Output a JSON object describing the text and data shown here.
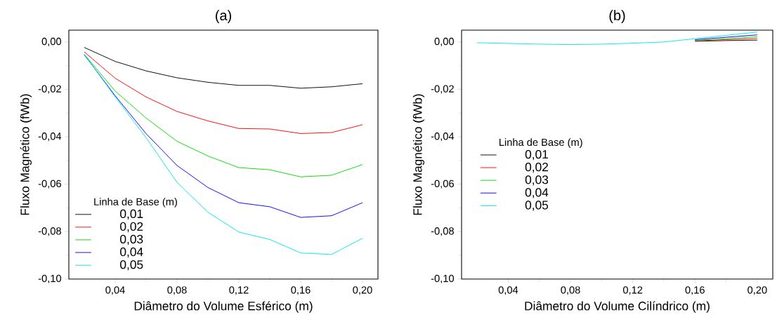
{
  "chart_data": [
    {
      "type": "line",
      "title": "(a)",
      "xlabel": "Diâmetro do Volume Esférico (m)",
      "ylabel": "Fluxo Magnético (fWb)",
      "legend_title": "Linha de Base (m)",
      "legend": "bottom left",
      "grid": false,
      "x": [
        0.02,
        0.04,
        0.06,
        0.08,
        0.1,
        0.12,
        0.14,
        0.16,
        0.18,
        0.2
      ],
      "xlim": [
        0.01,
        0.21
      ],
      "ylim": [
        -0.1,
        0.005
      ],
      "xticks": [
        {
          "value": 0.04,
          "label": "0,04"
        },
        {
          "value": 0.08,
          "label": "0,08"
        },
        {
          "value": 0.12,
          "label": "0,12"
        },
        {
          "value": 0.16,
          "label": "0,16"
        },
        {
          "value": 0.2,
          "label": "0,20"
        }
      ],
      "yticks": [
        {
          "value": -0.1,
          "label": "-0,10"
        },
        {
          "value": -0.08,
          "label": "-0,08"
        },
        {
          "value": -0.06,
          "label": "-0,06"
        },
        {
          "value": -0.04,
          "label": "-0,04"
        },
        {
          "value": -0.02,
          "label": "-0,02"
        },
        {
          "value": 0,
          "label": "0,00"
        }
      ],
      "series": [
        {
          "name": "0,01",
          "color": "#000000",
          "values": [
            -0.0023,
            -0.0082,
            -0.0122,
            -0.0151,
            -0.017,
            -0.0183,
            -0.0183,
            -0.0195,
            -0.0189,
            -0.0176
          ]
        },
        {
          "name": "0,02",
          "color": "#ff0000",
          "values": [
            -0.0042,
            -0.0153,
            -0.0232,
            -0.0293,
            -0.0333,
            -0.0365,
            -0.0367,
            -0.0386,
            -0.0382,
            -0.0349
          ]
        },
        {
          "name": "0,03",
          "color": "#00dd00",
          "values": [
            -0.0052,
            -0.0207,
            -0.0321,
            -0.0419,
            -0.0481,
            -0.053,
            -0.0539,
            -0.0569,
            -0.0562,
            -0.0517
          ]
        },
        {
          "name": "0,04",
          "color": "#0000ff",
          "values": [
            -0.0054,
            -0.0227,
            -0.0387,
            -0.0521,
            -0.0614,
            -0.0678,
            -0.0695,
            -0.074,
            -0.0733,
            -0.0678
          ]
        },
        {
          "name": "0,05",
          "color": "#00e5ee",
          "values": [
            -0.0052,
            -0.0232,
            -0.0404,
            -0.0592,
            -0.0718,
            -0.0802,
            -0.0833,
            -0.089,
            -0.0896,
            -0.0828
          ]
        }
      ]
    },
    {
      "type": "line",
      "title": "(b)",
      "xlabel": "Diâmetro do Volume Cilíndrico (m)",
      "ylabel": "Fluxo Magnético (fWb)",
      "legend_title": "Linha de Base (m)",
      "legend": "left",
      "grid": false,
      "x": [
        0.02,
        0.04,
        0.06,
        0.08,
        0.1,
        0.12,
        0.14,
        0.16,
        0.18,
        0.2
      ],
      "xlim": [
        0.01,
        0.21
      ],
      "ylim": [
        -0.1,
        0.005
      ],
      "xticks": [
        {
          "value": 0.04,
          "label": "0,04"
        },
        {
          "value": 0.08,
          "label": "0,08"
        },
        {
          "value": 0.12,
          "label": "0,12"
        },
        {
          "value": 0.16,
          "label": "0,16"
        },
        {
          "value": 0.2,
          "label": "0,20"
        }
      ],
      "yticks": [
        {
          "value": -0.1,
          "label": "-0,10"
        },
        {
          "value": -0.08,
          "label": "-0,08"
        },
        {
          "value": -0.06,
          "label": "-0,06"
        },
        {
          "value": -0.04,
          "label": "-0,04"
        },
        {
          "value": -0.02,
          "label": "-0,02"
        },
        {
          "value": 0,
          "label": "0,00"
        }
      ],
      "series": [
        {
          "name": "0,01",
          "color": "#000000",
          "values": [
            null,
            null,
            null,
            null,
            null,
            null,
            null,
            0.0003,
            0.0006,
            0.0008
          ]
        },
        {
          "name": "0,02",
          "color": "#ff0000",
          "values": [
            null,
            null,
            null,
            null,
            null,
            null,
            null,
            0.0005,
            0.001,
            0.0015
          ]
        },
        {
          "name": "0,03",
          "color": "#00dd00",
          "values": [
            null,
            null,
            null,
            null,
            null,
            null,
            null,
            0.0007,
            0.0014,
            0.0022
          ]
        },
        {
          "name": "0,04",
          "color": "#0000ff",
          "values": [
            null,
            null,
            null,
            null,
            null,
            null,
            null,
            0.001,
            0.002,
            0.003
          ]
        },
        {
          "name": "0,05",
          "color": "#00e5ee",
          "values": [
            -0.0003,
            -0.0006,
            -0.0009,
            -0.0011,
            -0.0009,
            -0.0005,
            0.0,
            0.0014,
            0.0028,
            0.0042
          ]
        }
      ]
    }
  ]
}
